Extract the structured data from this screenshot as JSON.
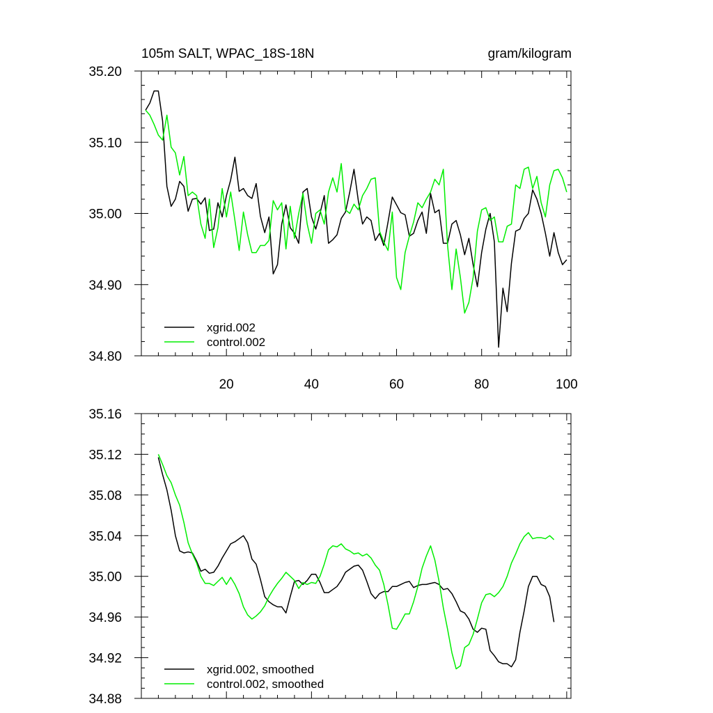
{
  "chart_data": [
    {
      "type": "line",
      "title_left": "105m SALT, WPAC_18S-18N",
      "title_right": "gram/kilogram",
      "xlim": [
        0,
        101
      ],
      "ylim": [
        34.8,
        35.2
      ],
      "x_ticks": [
        20,
        40,
        60,
        80,
        100
      ],
      "x_tick_labels": [
        "20",
        "40",
        "60",
        "80",
        "100"
      ],
      "y_ticks": [
        34.8,
        34.9,
        35.0,
        35.1,
        35.2
      ],
      "y_tick_labels": [
        "34.80",
        "34.90",
        "35.00",
        "35.10",
        "35.20"
      ],
      "legend_position": "bottom-left",
      "series": [
        {
          "name": "xgrid.002",
          "color": "#000000",
          "x": [
            1,
            2,
            3,
            4,
            5,
            6,
            7,
            8,
            9,
            10,
            11,
            12,
            13,
            14,
            15,
            16,
            17,
            18,
            19,
            20,
            21,
            22,
            23,
            24,
            25,
            26,
            27,
            28,
            29,
            30,
            31,
            32,
            33,
            34,
            35,
            36,
            37,
            38,
            39,
            40,
            41,
            42,
            43,
            44,
            45,
            46,
            47,
            48,
            49,
            50,
            51,
            52,
            53,
            54,
            55,
            56,
            57,
            58,
            59,
            60,
            61,
            62,
            63,
            64,
            65,
            66,
            67,
            68,
            69,
            70,
            71,
            72,
            73,
            74,
            75,
            76,
            77,
            78,
            79,
            80,
            81,
            82,
            83,
            84,
            85,
            86,
            87,
            88,
            89,
            90,
            91,
            92,
            93,
            94,
            95,
            96,
            97,
            98,
            99,
            100
          ],
          "values": [
            35.145,
            35.155,
            35.172,
            35.172,
            35.13,
            35.038,
            35.01,
            35.02,
            35.045,
            35.038,
            35.003,
            35.02,
            35.021,
            35.013,
            35.022,
            34.976,
            34.978,
            35.015,
            34.995,
            35.025,
            35.047,
            35.079,
            35.031,
            35.035,
            35.025,
            35.021,
            35.042,
            34.996,
            34.973,
            34.995,
            34.915,
            34.928,
            34.985,
            35.012,
            34.98,
            34.972,
            34.958,
            35.03,
            35.035,
            34.995,
            34.978,
            35.0,
            35.025,
            34.958,
            34.963,
            34.97,
            34.993,
            35.002,
            35.03,
            35.062,
            35.018,
            34.985,
            34.995,
            34.99,
            34.962,
            34.972,
            34.955,
            34.988,
            35.023,
            35.012,
            35.001,
            34.998,
            34.968,
            34.972,
            34.99,
            35.002,
            34.972,
            35.028,
            35.001,
            35.005,
            34.958,
            34.958,
            34.985,
            34.99,
            34.97,
            34.942,
            34.965,
            34.928,
            34.897,
            34.945,
            34.978,
            35.0,
            34.96,
            34.812,
            34.895,
            34.862,
            34.93,
            34.975,
            34.978,
            34.993,
            35.0,
            35.033,
            35.02,
            35.0,
            34.972,
            34.94,
            34.973,
            34.945,
            34.928,
            34.935
          ]
        },
        {
          "name": "control.002",
          "color": "#00ee00",
          "x": [
            1,
            2,
            3,
            4,
            5,
            6,
            7,
            8,
            9,
            10,
            11,
            12,
            13,
            14,
            15,
            16,
            17,
            18,
            19,
            20,
            21,
            22,
            23,
            24,
            25,
            26,
            27,
            28,
            29,
            30,
            31,
            32,
            33,
            34,
            35,
            36,
            37,
            38,
            39,
            40,
            41,
            42,
            43,
            44,
            45,
            46,
            47,
            48,
            49,
            50,
            51,
            52,
            53,
            54,
            55,
            56,
            57,
            58,
            59,
            60,
            61,
            62,
            63,
            64,
            65,
            66,
            67,
            68,
            69,
            70,
            71,
            72,
            73,
            74,
            75,
            76,
            77,
            78,
            79,
            80,
            81,
            82,
            83,
            84,
            85,
            86,
            87,
            88,
            89,
            90,
            91,
            92,
            93,
            94,
            95,
            96,
            97,
            98,
            99,
            100
          ],
          "values": [
            35.145,
            35.138,
            35.125,
            35.11,
            35.103,
            35.138,
            35.093,
            35.085,
            35.054,
            35.08,
            35.025,
            35.03,
            35.025,
            34.985,
            34.965,
            35.02,
            34.952,
            34.98,
            35.035,
            34.995,
            35.03,
            34.99,
            34.948,
            35.002,
            34.97,
            34.945,
            34.945,
            34.955,
            34.955,
            34.962,
            35.018,
            35.005,
            35.015,
            34.95,
            35.01,
            34.965,
            35.0,
            35.028,
            34.985,
            34.958,
            35.0,
            35.005,
            34.985,
            35.03,
            35.05,
            35.03,
            35.07,
            35.005,
            35.0,
            35.013,
            35.005,
            35.025,
            35.035,
            35.048,
            35.05,
            34.975,
            34.96,
            34.948,
            35.002,
            34.91,
            34.893,
            34.945,
            34.968,
            34.988,
            35.015,
            35.008,
            35.02,
            35.03,
            35.048,
            35.04,
            35.062,
            34.955,
            34.893,
            34.95,
            34.91,
            34.86,
            34.875,
            34.91,
            34.975,
            35.005,
            35.008,
            34.99,
            34.995,
            34.96,
            34.96,
            34.982,
            34.985,
            35.04,
            35.035,
            35.062,
            35.065,
            35.035,
            35.052,
            35.015,
            34.995,
            35.04,
            35.06,
            35.062,
            35.05,
            35.03
          ]
        }
      ]
    },
    {
      "type": "line",
      "xlim": [
        0,
        101
      ],
      "ylim": [
        34.88,
        35.16
      ],
      "x_ticks": [
        20,
        40,
        60,
        80,
        100
      ],
      "x_tick_labels": [],
      "y_ticks": [
        34.88,
        34.92,
        34.96,
        35.0,
        35.04,
        35.08,
        35.12,
        35.16
      ],
      "y_tick_labels": [
        "34.88",
        "34.92",
        "34.96",
        "35.00",
        "35.04",
        "35.08",
        "35.12",
        "35.16"
      ],
      "legend_position": "bottom-left",
      "series": [
        {
          "name": "xgrid.002, smoothed",
          "color": "#000000",
          "x": [
            4,
            5,
            6,
            7,
            8,
            9,
            10,
            11,
            12,
            13,
            14,
            15,
            16,
            17,
            18,
            19,
            20,
            21,
            22,
            23,
            24,
            25,
            26,
            27,
            28,
            29,
            30,
            31,
            32,
            33,
            34,
            35,
            36,
            37,
            38,
            39,
            40,
            41,
            42,
            43,
            44,
            45,
            46,
            47,
            48,
            49,
            50,
            51,
            52,
            53,
            54,
            55,
            56,
            57,
            58,
            59,
            60,
            61,
            62,
            63,
            64,
            65,
            66,
            67,
            68,
            69,
            70,
            71,
            72,
            73,
            74,
            75,
            76,
            77,
            78,
            79,
            80,
            81,
            82,
            83,
            84,
            85,
            86,
            87,
            88,
            89,
            90,
            91,
            92,
            93,
            94,
            95,
            96,
            97
          ],
          "values": [
            35.117,
            35.1,
            35.085,
            35.065,
            35.04,
            35.025,
            35.023,
            35.024,
            35.023,
            35.015,
            35.005,
            35.007,
            35.003,
            35.004,
            35.01,
            35.018,
            35.025,
            35.032,
            35.034,
            35.037,
            35.04,
            35.033,
            35.017,
            35.012,
            34.997,
            34.98,
            34.975,
            34.972,
            34.97,
            34.97,
            34.964,
            34.98,
            34.995,
            34.996,
            34.992,
            34.996,
            35.002,
            35.002,
            34.994,
            34.984,
            34.984,
            34.987,
            34.99,
            34.996,
            35.004,
            35.007,
            35.01,
            35.011,
            35.006,
            34.995,
            34.983,
            34.978,
            34.983,
            34.985,
            34.985,
            34.99,
            34.99,
            34.992,
            34.994,
            34.995,
            34.989,
            34.991,
            34.992,
            34.992,
            34.993,
            34.994,
            34.992,
            34.987,
            34.988,
            34.983,
            34.975,
            34.966,
            34.964,
            34.958,
            34.948,
            34.945,
            34.949,
            34.948,
            34.927,
            34.922,
            34.916,
            34.914,
            34.914,
            34.911,
            34.918,
            34.945,
            34.966,
            34.99,
            35.0,
            35.0,
            34.992,
            34.99,
            34.98,
            34.955
          ]
        },
        {
          "name": "control.002, smoothed",
          "color": "#00ee00",
          "x": [
            4,
            5,
            6,
            7,
            8,
            9,
            10,
            11,
            12,
            13,
            14,
            15,
            16,
            17,
            18,
            19,
            20,
            21,
            22,
            23,
            24,
            25,
            26,
            27,
            28,
            29,
            30,
            31,
            32,
            33,
            34,
            35,
            36,
            37,
            38,
            39,
            40,
            41,
            42,
            43,
            44,
            45,
            46,
            47,
            48,
            49,
            50,
            51,
            52,
            53,
            54,
            55,
            56,
            57,
            58,
            59,
            60,
            61,
            62,
            63,
            64,
            65,
            66,
            67,
            68,
            69,
            70,
            71,
            72,
            73,
            74,
            75,
            76,
            77,
            78,
            79,
            80,
            81,
            82,
            83,
            84,
            85,
            86,
            87,
            88,
            89,
            90,
            91,
            92,
            93,
            94,
            95,
            96,
            97
          ],
          "values": [
            35.12,
            35.11,
            35.099,
            35.092,
            35.08,
            35.07,
            35.053,
            35.033,
            35.022,
            35.013,
            35.0,
            34.993,
            34.993,
            34.991,
            34.995,
            34.999,
            34.992,
            34.999,
            34.992,
            34.983,
            34.97,
            34.962,
            34.958,
            34.961,
            34.965,
            34.971,
            34.98,
            34.987,
            34.993,
            34.998,
            35.004,
            35.0,
            34.996,
            34.988,
            34.994,
            34.992,
            34.994,
            34.993,
            35.0,
            35.012,
            35.026,
            35.03,
            35.029,
            35.032,
            35.027,
            35.025,
            35.022,
            35.023,
            35.02,
            35.022,
            35.018,
            35.011,
            35.006,
            34.992,
            34.972,
            34.949,
            34.948,
            34.955,
            34.963,
            34.963,
            34.975,
            34.99,
            35.008,
            35.02,
            35.03,
            35.016,
            34.995,
            34.969,
            34.948,
            34.925,
            34.909,
            34.912,
            34.93,
            34.933,
            34.943,
            34.958,
            34.974,
            34.982,
            34.983,
            34.98,
            34.984,
            34.99,
            35.0,
            35.013,
            35.022,
            35.032,
            35.039,
            35.043,
            35.037,
            35.038,
            35.038,
            35.037,
            35.04,
            35.036
          ]
        }
      ]
    }
  ]
}
